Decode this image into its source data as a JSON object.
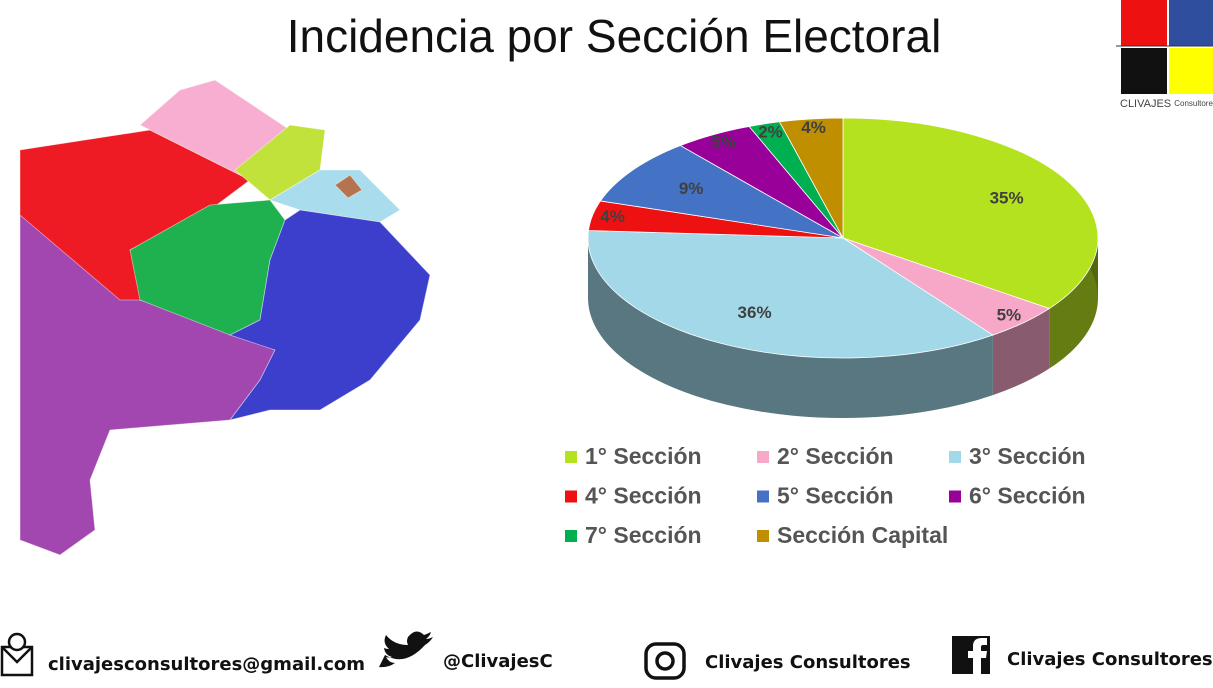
{
  "chart_data": {
    "type": "pie",
    "title": "Incidencia por Sección Electoral",
    "categories": [
      "1° Sección",
      "2° Sección",
      "3° Sección",
      "4° Sección",
      "5° Sección",
      "6° Sección",
      "7° Sección",
      "Sección Capital"
    ],
    "values": [
      35,
      5,
      36,
      4,
      9,
      5,
      2,
      4
    ],
    "value_labels": [
      "35%",
      "5%",
      "36%",
      "4%",
      "9%",
      "5%",
      "2%",
      "4%"
    ],
    "colors": [
      "#b5e21e",
      "#f7a8c8",
      "#a2d8e8",
      "#ee1111",
      "#4472c4",
      "#990099",
      "#00b050",
      "#bf8f00"
    ],
    "legend": "bottom"
  },
  "logo": {
    "text": "CLIVAJES",
    "subtext": "Consultores"
  },
  "footer": {
    "email": "clivajesconsultores@gmail.com",
    "twitter": "@ClivajesC",
    "instagram": "Clivajes Consultores",
    "facebook": "Clivajes Consultores"
  }
}
